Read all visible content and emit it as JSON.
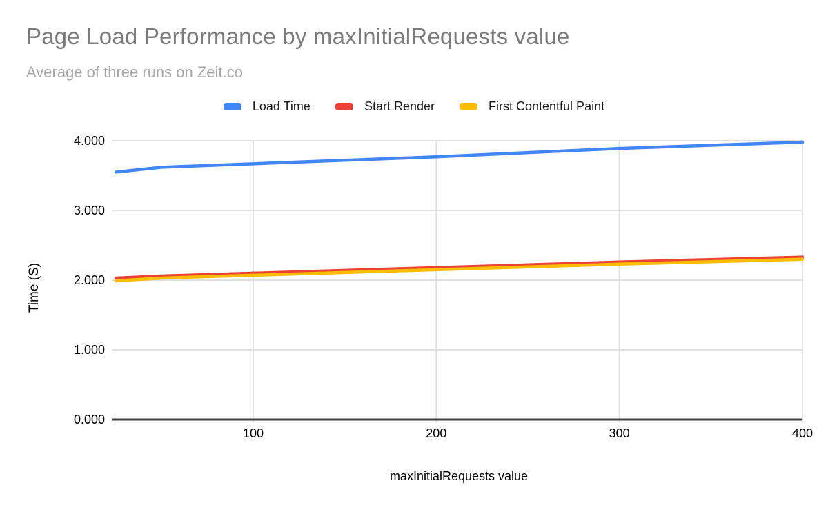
{
  "chart_data": {
    "type": "line",
    "title": "Page Load Performance by maxInitialRequests value",
    "subtitle": "Average of three runs on Zeit.co",
    "xlabel": "maxInitialRequests value",
    "ylabel": "Time (S)",
    "xlim": [
      25,
      400
    ],
    "ylim": [
      0,
      4
    ],
    "x": [
      25,
      50,
      100,
      200,
      300,
      400
    ],
    "xticks": [
      100,
      200,
      300,
      400
    ],
    "xtick_labels": [
      "100",
      "200",
      "300",
      "400"
    ],
    "yticks": [
      0,
      1,
      2,
      3,
      4
    ],
    "ytick_labels": [
      "0.000",
      "1.000",
      "2.000",
      "3.000",
      "4.000"
    ],
    "grid": true,
    "legend_position": "top",
    "series": [
      {
        "name": "Load Time",
        "color": "#4285F4",
        "values": [
          3.55,
          3.62,
          3.67,
          3.77,
          3.89,
          3.98
        ]
      },
      {
        "name": "Start Render",
        "color": "#EA4335",
        "values": [
          2.03,
          2.06,
          2.1,
          2.18,
          2.26,
          2.33
        ]
      },
      {
        "name": "First Contentful Paint",
        "color": "#FBBC04",
        "values": [
          1.99,
          2.03,
          2.07,
          2.15,
          2.23,
          2.3
        ]
      }
    ],
    "colors": {
      "grid": "#e0e0e0",
      "axis_baseline": "#424242",
      "title": "#7b7b7b",
      "subtitle": "#a6a6a6",
      "tick_text": "#000000"
    }
  }
}
